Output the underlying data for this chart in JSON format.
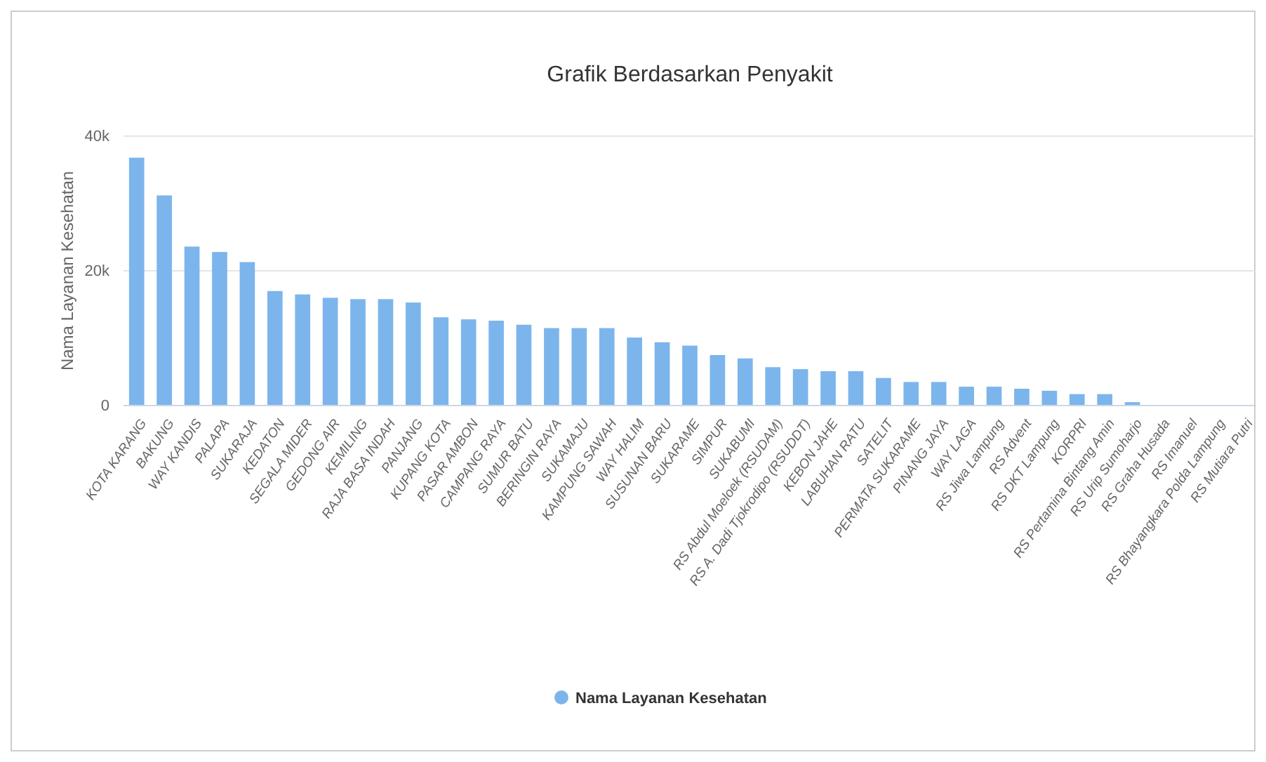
{
  "chart_data": {
    "type": "bar",
    "title": "Grafik Berdasarkan Penyakit",
    "ylabel": "Nama Layanan Kesehatan",
    "categories": [
      "KOTA KARANG",
      "BAKUNG",
      "WAY KANDIS",
      "PALAPA",
      "SUKARAJA",
      "KEDATON",
      "SEGALA MIDER",
      "GEDONG AIR",
      "KEMILING",
      "RAJA BASA INDAH",
      "PANJANG",
      "KUPANG KOTA",
      "PASAR AMBON",
      "CAMPANG RAYA",
      "SUMUR BATU",
      "BERINGIN RAYA",
      "SUKAMAJU",
      "KAMPUNG SAWAH",
      "WAY HALIM",
      "SUSUNAN BARU",
      "SUKARAME",
      "SIMPUR",
      "SUKABUMI",
      "RS Abdul Moeloek (RSUDAM)",
      "RS A. Dadi Tjokrodipo (RSUDDT)",
      "KEBON JAHE",
      "LABUHAN RATU",
      "SATELIT",
      "PERMATA SUKARAME",
      "PINANG JAYA",
      "WAY LAGA",
      "RS Jiwa Lampung",
      "RS Advent",
      "RS DKT Lampung",
      "KORPRI",
      "RS Pertamina Bintang Amin",
      "RS Urip Sumoharjo",
      "RS Graha Husada",
      "RS Imanuel",
      "RS Bhayangkara Polda Lampung",
      "RS Mutiara Putri"
    ],
    "series": [
      {
        "name": "Nama Layanan Kesehatan",
        "color": "#7cb5ec",
        "values": [
          36800,
          31200,
          23600,
          22800,
          21300,
          17000,
          16500,
          16000,
          15800,
          15800,
          15300,
          13100,
          12800,
          12600,
          12000,
          11500,
          11500,
          11500,
          10100,
          9400,
          8900,
          7500,
          7000,
          5700,
          5400,
          5100,
          5100,
          4100,
          3500,
          3500,
          2800,
          2800,
          2500,
          2200,
          1700,
          1700,
          500,
          0,
          0,
          0,
          0
        ]
      }
    ],
    "ylim": [
      0,
      40000
    ],
    "yticks": [
      0,
      {
        "value": 20000,
        "label": "20k"
      },
      {
        "value": 40000,
        "label": "40k"
      }
    ],
    "grid": "y",
    "legend": "bottom"
  }
}
